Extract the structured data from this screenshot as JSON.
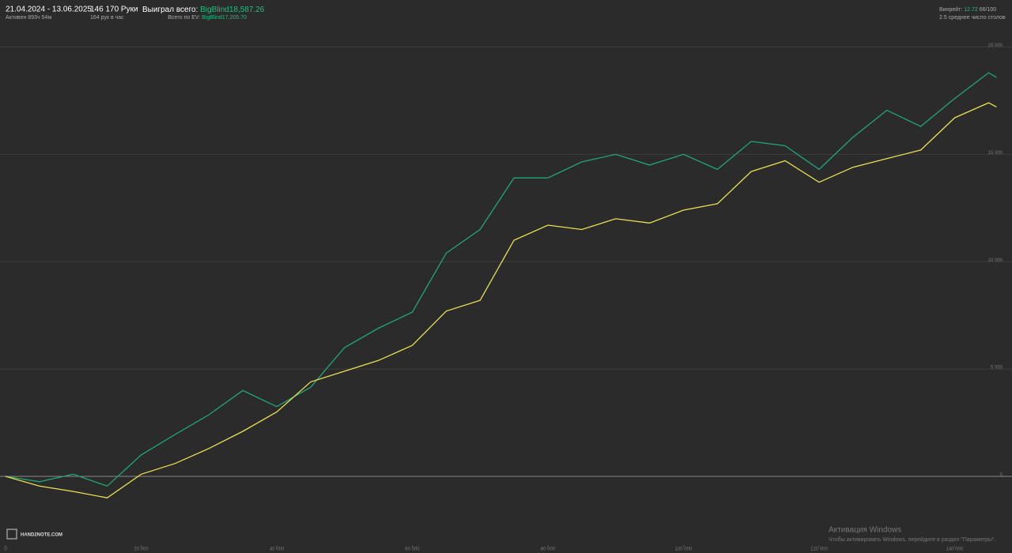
{
  "header": {
    "period": "21.04.2024 - 13.06.2025",
    "active": "Активен 893ч 54м",
    "hands": "146 170 Руки",
    "hands_per_hour": "164 рук в час",
    "won_label": "Выиграл всего:",
    "won_value": "BigBlind18,587.26",
    "ev_label": "Всего по EV:",
    "ev_value": "BigBlind17,205.70",
    "winrate_label": "Винрейт:",
    "winrate_value": "12.72",
    "winrate_rest": "66/100",
    "tables": "2.5 среднее число столов"
  },
  "logo": "HAND2NOTE.COM",
  "watermark": {
    "title": "Активация Windows",
    "text": "Чтобы активировать Windows, перейдите в раздел \"Параметры\"."
  },
  "chart_data": {
    "type": "line",
    "x": [
      0,
      5000,
      10000,
      15000,
      20000,
      25000,
      30000,
      35000,
      40000,
      45000,
      50000,
      55000,
      60000,
      65000,
      70000,
      75000,
      80000,
      85000,
      90000,
      95000,
      100000,
      105000,
      110000,
      115000,
      120000,
      125000,
      130000,
      135000,
      140000,
      145000,
      146170
    ],
    "series": [
      {
        "name": "Выиграл всего",
        "color": "#1fa874",
        "values": [
          0,
          -250,
          100,
          -450,
          1000,
          1950,
          2870,
          4000,
          3250,
          4150,
          6000,
          6900,
          7650,
          10400,
          11500,
          13900,
          13900,
          14650,
          15000,
          14500,
          15000,
          14300,
          15600,
          15400,
          14300,
          15800,
          17050,
          16300,
          17600,
          18800,
          18587.26
        ]
      },
      {
        "name": "Всего по EV",
        "color": "#e8e050",
        "values": [
          0,
          -450,
          -700,
          -1000,
          100,
          600,
          1300,
          2100,
          3000,
          4400,
          4900,
          5400,
          6100,
          7700,
          8200,
          11000,
          11700,
          11500,
          12000,
          11800,
          12400,
          12700,
          14200,
          14700,
          13700,
          14400,
          14800,
          15200,
          16700,
          17400,
          17205.7
        ]
      }
    ],
    "xlim": [
      0,
      147000
    ],
    "ylim": [
      -3200,
      20900
    ],
    "xticks": [
      0,
      {
        "value": 20000,
        "label": "20 000"
      },
      {
        "value": 40000,
        "label": "40 000"
      },
      {
        "value": 60000,
        "label": "60 000"
      },
      {
        "value": 80000,
        "label": "80 000"
      },
      {
        "value": 100000,
        "label": "100 000"
      },
      {
        "value": 120000,
        "label": "120 000"
      },
      {
        "value": 140000,
        "label": "140 000"
      }
    ],
    "yticks": [
      0,
      {
        "value": 5000,
        "label": "5 000"
      },
      {
        "value": 10000,
        "label": "10 000"
      },
      {
        "value": 15000,
        "label": "15 000"
      },
      {
        "value": 20000,
        "label": "20 000"
      }
    ],
    "grid": true
  }
}
